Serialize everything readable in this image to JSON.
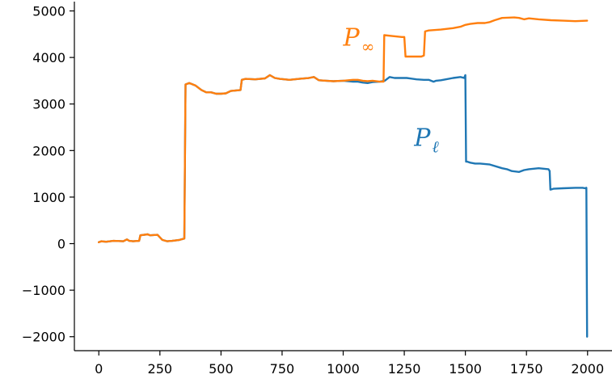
{
  "chart_data": {
    "type": "line",
    "title": "",
    "xlabel": "",
    "ylabel": "",
    "xlim": [
      -100,
      2100
    ],
    "ylim": [
      -2300,
      5200
    ],
    "xticks": [
      0,
      250,
      500,
      750,
      1000,
      1250,
      1500,
      1750,
      2000
    ],
    "xtick_labels": [
      "0",
      "250",
      "500",
      "750",
      "1000",
      "1250",
      "1500",
      "1750",
      "2000"
    ],
    "yticks": [
      -2000,
      -1000,
      0,
      1000,
      2000,
      3000,
      4000,
      5000
    ],
    "ytick_labels": [
      "−2000",
      "−1000",
      "0",
      "1000",
      "2000",
      "3000",
      "4000",
      "5000"
    ],
    "grid": false,
    "legend": "none",
    "annotations": [
      {
        "base": "P",
        "sub": "∞",
        "color": "#ff7f0e",
        "x": 1000,
        "y": 4250
      },
      {
        "base": "P",
        "sub": "ℓ",
        "color": "#1f77b4",
        "x": 1290,
        "y": 2100
      }
    ],
    "series": [
      {
        "color": "#1f77b4",
        "x": [
          0,
          10,
          30,
          60,
          100,
          115,
          125,
          140,
          165,
          170,
          200,
          210,
          240,
          260,
          280,
          300,
          330,
          350,
          355,
          370,
          395,
          420,
          440,
          460,
          480,
          500,
          520,
          540,
          580,
          585,
          600,
          640,
          680,
          700,
          720,
          740,
          780,
          820,
          860,
          880,
          900,
          930,
          960,
          1000,
          1040,
          1060,
          1080,
          1100,
          1120,
          1150,
          1170,
          1190,
          1210,
          1240,
          1260,
          1300,
          1330,
          1350,
          1370,
          1380,
          1400,
          1420,
          1450,
          1480,
          1495,
          1500,
          1503,
          1508,
          1520,
          1540,
          1560,
          1600,
          1650,
          1670,
          1690,
          1720,
          1740,
          1760,
          1800,
          1840,
          1845,
          1848,
          1860,
          1900,
          1950,
          1980,
          1990,
          1995,
          1998
        ],
        "y": [
          30,
          50,
          40,
          60,
          50,
          90,
          60,
          50,
          60,
          180,
          200,
          180,
          190,
          80,
          50,
          60,
          80,
          110,
          3420,
          3450,
          3400,
          3300,
          3250,
          3250,
          3220,
          3220,
          3230,
          3280,
          3300,
          3520,
          3540,
          3530,
          3550,
          3620,
          3560,
          3540,
          3520,
          3540,
          3560,
          3580,
          3510,
          3500,
          3490,
          3500,
          3480,
          3480,
          3460,
          3450,
          3470,
          3480,
          3500,
          3580,
          3560,
          3560,
          3560,
          3530,
          3520,
          3520,
          3480,
          3500,
          3510,
          3530,
          3560,
          3580,
          3560,
          3620,
          1760,
          1760,
          1740,
          1720,
          1720,
          1700,
          1620,
          1600,
          1560,
          1540,
          1580,
          1600,
          1620,
          1600,
          1560,
          1160,
          1180,
          1190,
          1200,
          1200,
          1190,
          1200,
          -2000
        ]
      },
      {
        "color": "#ff7f0e",
        "x": [
          0,
          10,
          30,
          60,
          100,
          115,
          125,
          140,
          165,
          170,
          200,
          210,
          240,
          260,
          280,
          300,
          330,
          350,
          355,
          370,
          395,
          420,
          440,
          460,
          480,
          500,
          520,
          540,
          580,
          585,
          600,
          640,
          680,
          700,
          720,
          740,
          780,
          820,
          860,
          880,
          900,
          930,
          960,
          1000,
          1040,
          1060,
          1080,
          1100,
          1120,
          1150,
          1165,
          1168,
          1200,
          1240,
          1250,
          1255,
          1290,
          1320,
          1330,
          1335,
          1350,
          1400,
          1450,
          1480,
          1500,
          1520,
          1550,
          1580,
          1600,
          1620,
          1650,
          1700,
          1720,
          1740,
          1760,
          1800,
          1850,
          1900,
          1950,
          1998
        ],
        "y": [
          30,
          50,
          40,
          60,
          50,
          90,
          60,
          50,
          60,
          180,
          200,
          180,
          190,
          80,
          50,
          60,
          80,
          110,
          3420,
          3450,
          3400,
          3300,
          3250,
          3250,
          3220,
          3220,
          3230,
          3280,
          3300,
          3520,
          3540,
          3530,
          3550,
          3620,
          3560,
          3540,
          3520,
          3540,
          3560,
          3580,
          3510,
          3500,
          3490,
          3500,
          3520,
          3520,
          3500,
          3490,
          3500,
          3480,
          3480,
          4480,
          4460,
          4440,
          4440,
          4020,
          4020,
          4020,
          4040,
          4560,
          4580,
          4600,
          4630,
          4660,
          4700,
          4720,
          4740,
          4740,
          4760,
          4800,
          4850,
          4860,
          4850,
          4820,
          4840,
          4820,
          4800,
          4790,
          4780,
          4790
        ]
      }
    ]
  }
}
